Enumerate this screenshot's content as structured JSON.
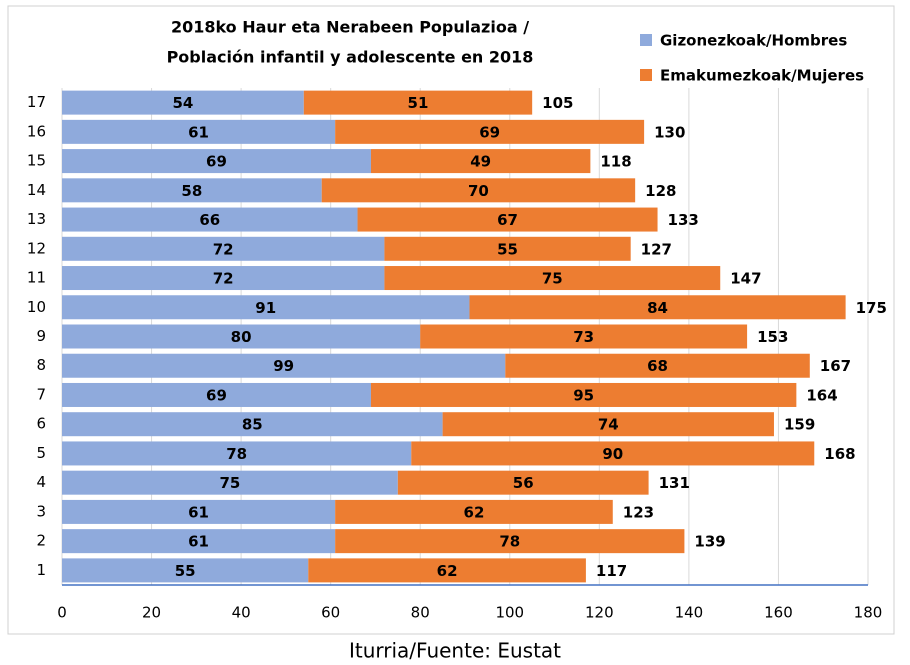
{
  "chart_data": {
    "type": "stacked-bar-horizontal",
    "title": [
      "2018ko Haur eta Nerabeen Populazioa  /",
      "Población infantil y adolescente en 2018"
    ],
    "categories": [
      "1",
      "2",
      "3",
      "4",
      "5",
      "6",
      "7",
      "8",
      "9",
      "10",
      "11",
      "12",
      "13",
      "14",
      "15",
      "16",
      "17"
    ],
    "series": [
      {
        "name": "Gizonezkoak/Hombres",
        "color": "#8faadc",
        "values": [
          55,
          61,
          61,
          75,
          78,
          85,
          69,
          99,
          80,
          91,
          72,
          72,
          66,
          58,
          69,
          61,
          54
        ]
      },
      {
        "name": "Emakumezkoak/Mujeres",
        "color": "#ed7d31",
        "values": [
          62,
          78,
          62,
          56,
          90,
          74,
          95,
          68,
          73,
          84,
          75,
          55,
          67,
          70,
          49,
          69,
          51
        ]
      }
    ],
    "totals": [
      117,
      139,
      123,
      131,
      168,
      159,
      164,
      167,
      153,
      175,
      147,
      127,
      133,
      128,
      118,
      130,
      105
    ],
    "xlim": [
      0,
      180
    ],
    "xticks": [
      0,
      20,
      40,
      60,
      80,
      100,
      120,
      140,
      160,
      180
    ],
    "grid": true,
    "legend": "top-right",
    "source": "Iturria/Fuente: Eustat"
  }
}
